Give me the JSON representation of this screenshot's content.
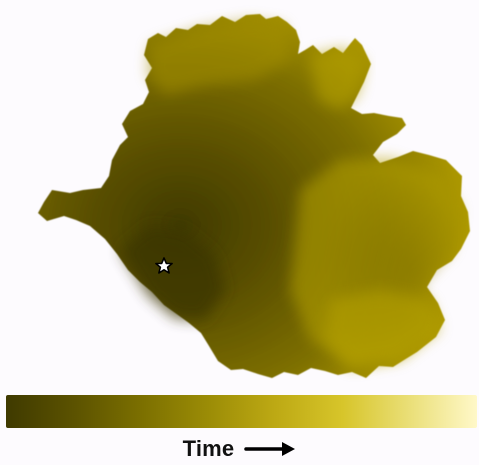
{
  "legend": {
    "label": "Time",
    "arrow_icon": "right-arrow-icon",
    "start_color": "#3f3a00",
    "end_color": "#fff8c8",
    "gradient_stops": [
      "#3f3a00",
      "#5b5200",
      "#7b6f00",
      "#9b8c06",
      "#bda914",
      "#d7c52a",
      "#eadf78",
      "#fff8c8"
    ]
  },
  "map": {
    "marker_icon": "star-icon",
    "shape_color_dark": "#3d3700",
    "shape_color_light": "#b5a000"
  }
}
